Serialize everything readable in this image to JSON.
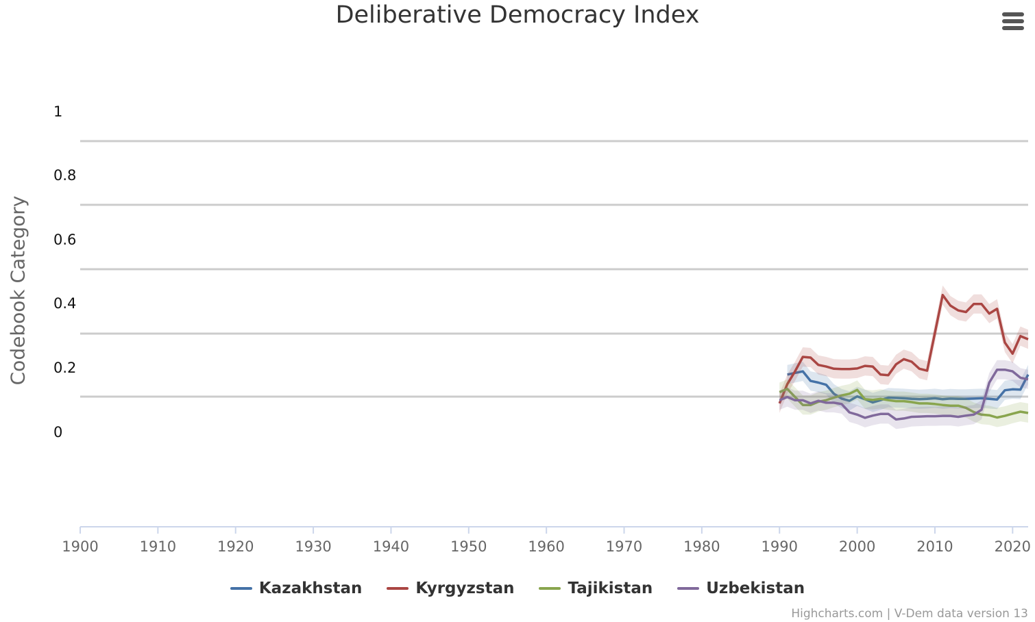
{
  "menu": {
    "icon": "hamburger-menu-icon"
  },
  "credits": "Highcharts.com | V-Dem data version 13",
  "chart_data": {
    "type": "line",
    "title": "Deliberative Democracy Index",
    "ylabel": "Codebook Category",
    "xlabel": "",
    "xlim": [
      1900,
      2022
    ],
    "ylim": [
      -0.3,
      1
    ],
    "y_ticks": [
      "1",
      "0.8",
      "0.6",
      "0.4",
      "0.2",
      "0"
    ],
    "x_ticks": [
      "1900",
      "1910",
      "1920",
      "1930",
      "1940",
      "1950",
      "1960",
      "1970",
      "1980",
      "1990",
      "2000",
      "2010",
      "2020"
    ],
    "grid": true,
    "legend": "bottom-center",
    "series": [
      {
        "name": "Kazakhstan",
        "color": "#4572a7",
        "x": [
          1991,
          1992,
          1993,
          1994,
          1995,
          1996,
          1997,
          1998,
          1999,
          2000,
          2001,
          2002,
          2003,
          2004,
          2005,
          2006,
          2007,
          2008,
          2009,
          2010,
          2011,
          2012,
          2013,
          2014,
          2015,
          2016,
          2017,
          2018,
          2019,
          2020,
          2021,
          2022
        ],
        "y": [
          0.18,
          0.185,
          0.19,
          0.16,
          0.155,
          0.148,
          0.12,
          0.105,
          0.098,
          0.112,
          0.103,
          0.093,
          0.1,
          0.108,
          0.107,
          0.106,
          0.104,
          0.103,
          0.104,
          0.106,
          0.103,
          0.105,
          0.104,
          0.104,
          0.105,
          0.106,
          0.104,
          0.102,
          0.131,
          0.134,
          0.133,
          0.18
        ]
      },
      {
        "name": "Kyrgyzstan",
        "color": "#aa4643",
        "x": [
          1990,
          1991,
          1992,
          1993,
          1994,
          1995,
          1996,
          1997,
          1998,
          1999,
          2000,
          2001,
          2002,
          2003,
          2004,
          2005,
          2006,
          2007,
          2008,
          2009,
          2010,
          2011,
          2012,
          2013,
          2014,
          2015,
          2016,
          2017,
          2018,
          2019,
          2020,
          2021,
          2022
        ],
        "y": [
          0.09,
          0.15,
          0.19,
          0.235,
          0.233,
          0.21,
          0.205,
          0.198,
          0.197,
          0.197,
          0.199,
          0.207,
          0.205,
          0.18,
          0.178,
          0.212,
          0.228,
          0.22,
          0.198,
          0.192,
          0.31,
          0.428,
          0.395,
          0.38,
          0.375,
          0.4,
          0.4,
          0.37,
          0.385,
          0.28,
          0.245,
          0.3,
          0.29
        ]
      },
      {
        "name": "Tajikistan",
        "color": "#89a54e",
        "x": [
          1990,
          1991,
          1992,
          1993,
          1994,
          1995,
          1996,
          1997,
          1998,
          1999,
          2000,
          2001,
          2002,
          2003,
          2004,
          2005,
          2006,
          2007,
          2008,
          2009,
          2010,
          2011,
          2012,
          2013,
          2014,
          2015,
          2016,
          2017,
          2018,
          2019,
          2020,
          2021,
          2022
        ],
        "y": [
          0.125,
          0.135,
          0.11,
          0.085,
          0.085,
          0.095,
          0.1,
          0.108,
          0.115,
          0.12,
          0.132,
          0.103,
          0.101,
          0.104,
          0.1,
          0.097,
          0.097,
          0.094,
          0.09,
          0.09,
          0.088,
          0.085,
          0.083,
          0.083,
          0.076,
          0.063,
          0.055,
          0.053,
          0.046,
          0.051,
          0.058,
          0.064,
          0.06
        ]
      },
      {
        "name": "Uzbekistan",
        "color": "#80699b",
        "x": [
          1990,
          1991,
          1992,
          1993,
          1994,
          1995,
          1996,
          1997,
          1998,
          1999,
          2000,
          2001,
          2002,
          2003,
          2004,
          2005,
          2006,
          2007,
          2008,
          2009,
          2010,
          2011,
          2012,
          2013,
          2014,
          2015,
          2016,
          2017,
          2018,
          2019,
          2020,
          2021,
          2022
        ],
        "y": [
          0.1,
          0.11,
          0.1,
          0.1,
          0.09,
          0.098,
          0.092,
          0.092,
          0.088,
          0.062,
          0.055,
          0.045,
          0.052,
          0.057,
          0.057,
          0.04,
          0.043,
          0.048,
          0.049,
          0.05,
          0.05,
          0.051,
          0.051,
          0.048,
          0.052,
          0.055,
          0.07,
          0.155,
          0.195,
          0.195,
          0.19,
          0.17,
          0.165
        ]
      }
    ]
  }
}
